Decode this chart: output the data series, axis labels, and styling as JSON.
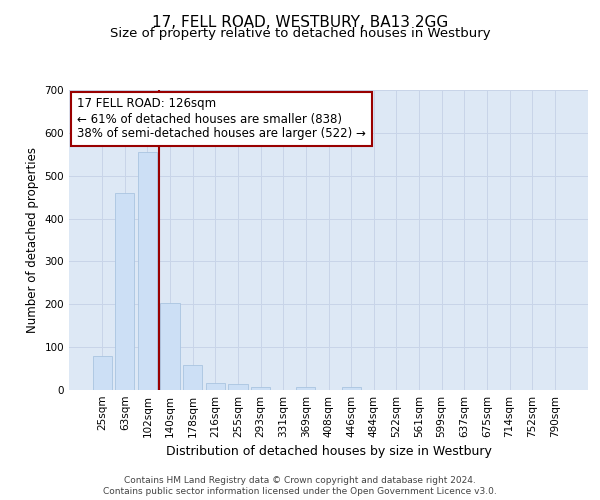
{
  "title": "17, FELL ROAD, WESTBURY, BA13 2GG",
  "subtitle": "Size of property relative to detached houses in Westbury",
  "xlabel": "Distribution of detached houses by size in Westbury",
  "ylabel": "Number of detached properties",
  "bar_labels": [
    "25sqm",
    "63sqm",
    "102sqm",
    "140sqm",
    "178sqm",
    "216sqm",
    "255sqm",
    "293sqm",
    "331sqm",
    "369sqm",
    "408sqm",
    "446sqm",
    "484sqm",
    "522sqm",
    "561sqm",
    "599sqm",
    "637sqm",
    "675sqm",
    "714sqm",
    "752sqm",
    "790sqm"
  ],
  "bar_values": [
    80,
    460,
    555,
    203,
    58,
    17,
    15,
    8,
    0,
    8,
    0,
    8,
    0,
    0,
    0,
    0,
    0,
    0,
    0,
    0,
    0
  ],
  "bar_color": "#ccdff5",
  "bar_edgecolor": "#aac4e0",
  "vline_x_idx": 2,
  "vline_color": "#990000",
  "annotation_line1": "17 FELL ROAD: 126sqm",
  "annotation_line2": "← 61% of detached houses are smaller (838)",
  "annotation_line3": "38% of semi-detached houses are larger (522) →",
  "annotation_box_color": "#ffffff",
  "annotation_box_edgecolor": "#990000",
  "ylim": [
    0,
    700
  ],
  "yticks": [
    0,
    100,
    200,
    300,
    400,
    500,
    600,
    700
  ],
  "grid_color": "#c8d4e8",
  "background_color": "#dde8f5",
  "footer_line1": "Contains HM Land Registry data © Crown copyright and database right 2024.",
  "footer_line2": "Contains public sector information licensed under the Open Government Licence v3.0.",
  "title_fontsize": 11,
  "subtitle_fontsize": 9.5,
  "xlabel_fontsize": 9,
  "ylabel_fontsize": 8.5,
  "tick_fontsize": 7.5,
  "footer_fontsize": 6.5,
  "annot_fontsize": 8.5
}
